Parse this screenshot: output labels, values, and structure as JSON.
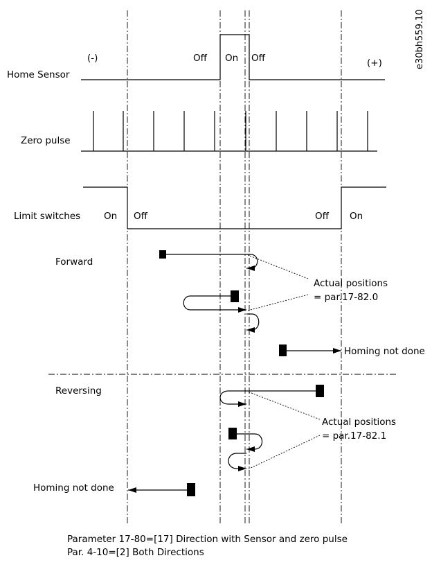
{
  "image_id": "e30bh559.10",
  "signals": {
    "home_sensor": {
      "label": "Home Sensor",
      "left": "(-)",
      "off1": "Off",
      "on": "On",
      "off2": "Off",
      "right": "(+)"
    },
    "zero_pulse": {
      "label": "Zero pulse"
    },
    "limit_switches": {
      "label": "Limit switches",
      "on1": "On",
      "off1": "Off",
      "off2": "Off",
      "on2": "On"
    }
  },
  "forward": {
    "label": "Forward",
    "actual_positions": "Actual positions",
    "param": "= par.17-82.0",
    "homing_not_done": "Homing not done"
  },
  "reversing": {
    "label": "Reversing",
    "actual_positions": "Actual positions",
    "param": "= par.17-82.1",
    "homing_not_done": "Homing not done"
  },
  "footer": {
    "line1": "Parameter 17-80=[17] Direction with Sensor and zero pulse",
    "line2": "Par. 4-10=[2] Both Directions"
  }
}
